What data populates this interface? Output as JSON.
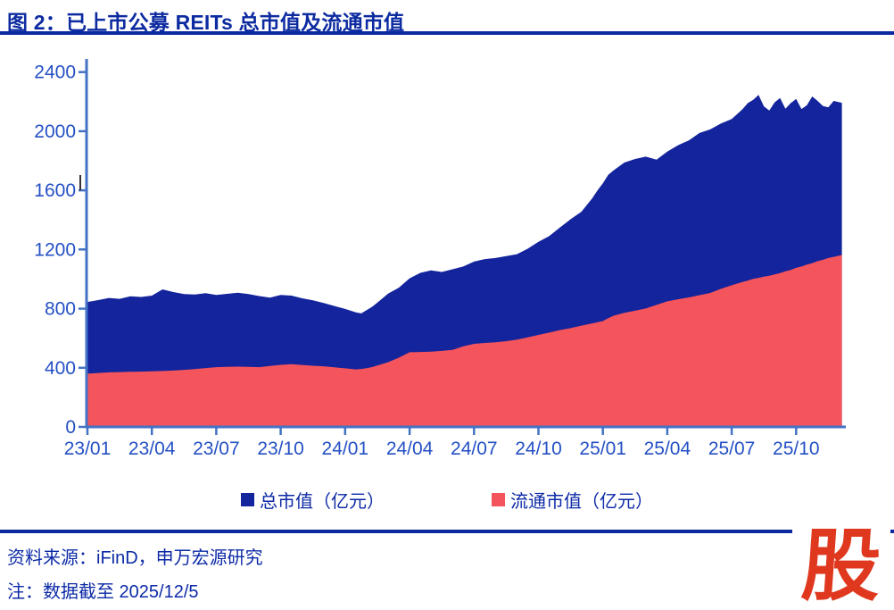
{
  "page": {
    "title": "图 2：已上市公募 REITs 总市值及流通市值",
    "source_line": "资料来源：iFinD，申万宏源研究",
    "note_line": "注：数据截至 2025/12/5",
    "logo_glyph": "股"
  },
  "colors": {
    "title_blue": "#0D2BA0",
    "divider_blue": "#0B2AA2",
    "axis_blue": "#4472C4",
    "tick_label_blue": "#2450C4",
    "total_fill": "#13249C",
    "circulating_fill": "#F4545C",
    "logo_red": "#E0381F"
  },
  "chart_data": {
    "type": "area",
    "title": "已上市公募 REITs 总市值及流通市值",
    "y_unit": "亿元",
    "x_unit": "month index from 2023-01, data through 2025/12/5",
    "ylim": [
      0,
      2400
    ],
    "y_ticks": [
      0,
      400,
      800,
      1200,
      1600,
      2000,
      2400
    ],
    "x_tick_months": [
      0,
      3,
      6,
      9,
      12,
      15,
      18,
      21,
      24,
      27,
      30,
      33
    ],
    "x_tick_labels": [
      "23/01",
      "23/04",
      "23/07",
      "23/10",
      "24/01",
      "24/04",
      "24/07",
      "24/10",
      "25/01",
      "25/04",
      "25/07",
      "25/10"
    ],
    "grid": false,
    "legend_position": "bottom",
    "x": [
      0,
      0.5,
      1,
      1.5,
      2,
      2.5,
      3,
      3.5,
      4,
      4.5,
      5,
      5.5,
      6,
      6.5,
      7,
      7.5,
      8,
      8.5,
      9,
      9.5,
      10,
      10.5,
      11,
      11.5,
      12,
      12.5,
      12.75,
      13,
      13.25,
      13.5,
      14,
      14.5,
      15,
      15.5,
      16,
      16.5,
      17,
      17.5,
      18,
      18.5,
      19,
      19.5,
      20,
      20.5,
      21,
      21.5,
      22,
      22.5,
      23,
      23.5,
      23.75,
      24,
      24.25,
      24.5,
      25,
      25.5,
      26,
      26.5,
      27,
      27.5,
      28,
      28.5,
      29,
      29.5,
      30,
      30.5,
      30.75,
      31,
      31.25,
      31.5,
      31.75,
      32,
      32.25,
      32.5,
      32.75,
      33,
      33.25,
      33.5,
      33.75,
      34,
      34.25,
      34.5,
      34.75,
      35.13
    ],
    "series": [
      {
        "name": "总市值（亿元）",
        "color": "#13249C",
        "values": [
          845,
          858,
          872,
          866,
          884,
          879,
          888,
          930,
          912,
          898,
          896,
          904,
          893,
          900,
          908,
          898,
          885,
          874,
          893,
          888,
          870,
          856,
          838,
          818,
          798,
          775,
          768,
          790,
          812,
          840,
          902,
          942,
          1005,
          1042,
          1058,
          1048,
          1066,
          1085,
          1118,
          1135,
          1142,
          1155,
          1168,
          1205,
          1252,
          1290,
          1348,
          1405,
          1455,
          1545,
          1600,
          1648,
          1705,
          1735,
          1788,
          1812,
          1828,
          1808,
          1862,
          1905,
          1938,
          1988,
          2012,
          2052,
          2082,
          2148,
          2190,
          2212,
          2245,
          2168,
          2140,
          2195,
          2225,
          2152,
          2190,
          2218,
          2150,
          2175,
          2235,
          2205,
          2170,
          2162,
          2205,
          2192
        ]
      },
      {
        "name": "流通市值（亿元）",
        "color": "#F4545C",
        "values": [
          360,
          365,
          369,
          371,
          373,
          374,
          376,
          378,
          381,
          386,
          391,
          398,
          404,
          406,
          408,
          406,
          404,
          412,
          420,
          424,
          419,
          414,
          410,
          403,
          396,
          389,
          392,
          397,
          405,
          415,
          438,
          468,
          505,
          507,
          509,
          514,
          521,
          545,
          562,
          568,
          572,
          580,
          590,
          605,
          622,
          638,
          655,
          668,
          685,
          700,
          708,
          716,
          735,
          752,
          772,
          786,
          801,
          825,
          849,
          863,
          876,
          891,
          906,
          934,
          958,
          980,
          990,
          1001,
          1008,
          1016,
          1022,
          1031,
          1040,
          1053,
          1062,
          1076,
          1085,
          1098,
          1108,
          1121,
          1130,
          1142,
          1150,
          1163
        ]
      }
    ]
  }
}
